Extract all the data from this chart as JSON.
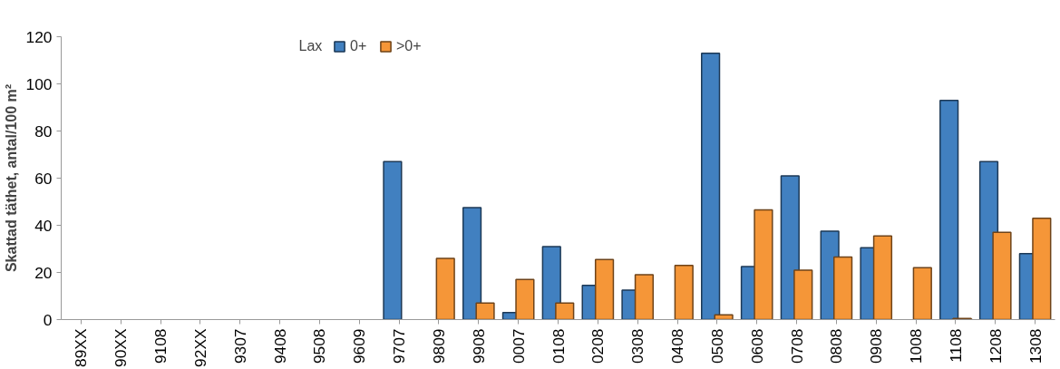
{
  "chart_data": {
    "type": "bar",
    "legend_title": "Lax",
    "ylabel": "Skattad täthet, antal/100 m²",
    "categories": [
      "89XX",
      "90XX",
      "9108",
      "92XX",
      "9307",
      "9408",
      "9508",
      "9609",
      "9707",
      "9809",
      "9908",
      "0007",
      "0108",
      "0208",
      "0308",
      "0408",
      "0508",
      "0608",
      "0708",
      "0808",
      "0908",
      "1008",
      "1108",
      "1208",
      "1308"
    ],
    "series": [
      {
        "name": "0+",
        "color": "#4180c0",
        "values": [
          null,
          null,
          null,
          null,
          null,
          null,
          null,
          null,
          67,
          null,
          47.5,
          3,
          31,
          14.5,
          12.5,
          null,
          113,
          22.5,
          61,
          37.5,
          30.5,
          null,
          93,
          67,
          28
        ]
      },
      {
        "name": ">0+",
        "color": "#f59638",
        "values": [
          null,
          null,
          null,
          null,
          null,
          null,
          null,
          null,
          null,
          26,
          7,
          17,
          7,
          25.5,
          19,
          23,
          2,
          46.5,
          21,
          26.5,
          35.5,
          22,
          0.5,
          37,
          43
        ]
      }
    ],
    "ylim": [
      0,
      120
    ],
    "yticks": [
      0,
      20,
      40,
      60,
      80,
      100,
      120
    ],
    "grid": false,
    "legend": "top"
  }
}
